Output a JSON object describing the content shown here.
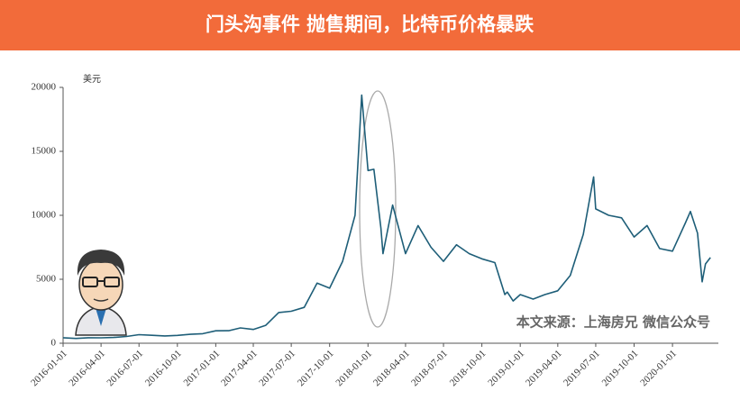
{
  "chart_data": {
    "type": "line",
    "title": "门头沟事件 抛售期间，比特币价格暴跌",
    "ylabel": "美元",
    "watermark": "本文来源：上海房兄  微信公众号",
    "color": "#1e5e78",
    "x": [
      "2016-01-01",
      "2016-02-01",
      "2016-03-01",
      "2016-04-01",
      "2016-05-01",
      "2016-06-01",
      "2016-07-01",
      "2016-08-01",
      "2016-09-01",
      "2016-10-01",
      "2016-11-01",
      "2016-12-01",
      "2017-01-01",
      "2017-02-01",
      "2017-03-01",
      "2017-04-01",
      "2017-05-01",
      "2017-06-01",
      "2017-07-01",
      "2017-08-01",
      "2017-09-01",
      "2017-10-01",
      "2017-11-01",
      "2017-12-01",
      "2017-12-17",
      "2018-01-01",
      "2018-01-15",
      "2018-02-01",
      "2018-02-06",
      "2018-03-01",
      "2018-04-01",
      "2018-05-01",
      "2018-06-01",
      "2018-07-01",
      "2018-08-01",
      "2018-09-01",
      "2018-10-01",
      "2018-11-01",
      "2018-11-25",
      "2018-12-01",
      "2018-12-15",
      "2019-01-01",
      "2019-02-01",
      "2019-03-01",
      "2019-04-01",
      "2019-05-01",
      "2019-06-01",
      "2019-06-26",
      "2019-07-01",
      "2019-08-01",
      "2019-09-01",
      "2019-10-01",
      "2019-11-01",
      "2019-12-01",
      "2020-01-01",
      "2020-02-01",
      "2020-02-13",
      "2020-03-01",
      "2020-03-12",
      "2020-03-20",
      "2020-04-01"
    ],
    "values": [
      430,
      370,
      430,
      420,
      450,
      530,
      670,
      620,
      570,
      610,
      700,
      750,
      970,
      980,
      1200,
      1080,
      1400,
      2400,
      2500,
      2800,
      4700,
      4300,
      6400,
      10000,
      19400,
      13500,
      13600,
      9000,
      7000,
      10800,
      7000,
      9200,
      7500,
      6400,
      7700,
      7000,
      6600,
      6300,
      3800,
      4000,
      3300,
      3800,
      3450,
      3800,
      4100,
      5300,
      8500,
      13000,
      10500,
      10000,
      9800,
      8300,
      9200,
      7400,
      7200,
      9400,
      10300,
      8600,
      4800,
      6200,
      6700
    ],
    "xlim": [
      "2016-01-01",
      "2020-04-20"
    ],
    "xticks": [
      "2016-01-01",
      "2016-04-01",
      "2016-07-01",
      "2016-10-01",
      "2017-01-01",
      "2017-04-01",
      "2017-07-01",
      "2017-10-01",
      "2018-01-01",
      "2018-04-01",
      "2018-07-01",
      "2018-10-01",
      "2019-01-01",
      "2019-04-01",
      "2019-07-01",
      "2019-10-01",
      "2020-01-01"
    ],
    "ylim": [
      0,
      20000
    ],
    "yticks": [
      0,
      5000,
      10000,
      15000,
      20000
    ]
  }
}
